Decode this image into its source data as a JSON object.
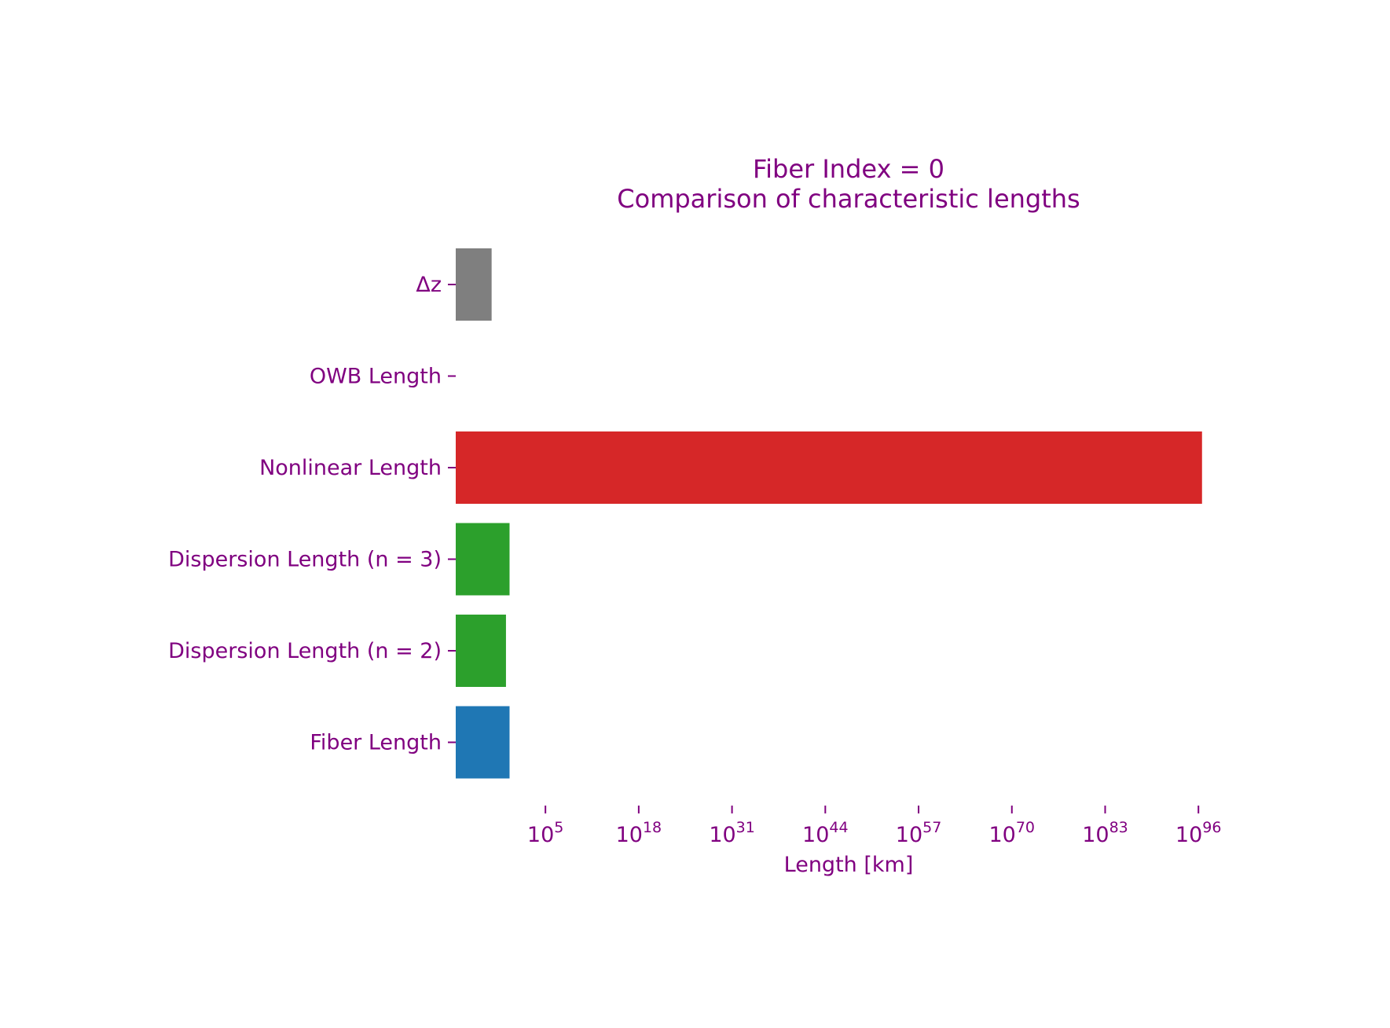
{
  "chart_data": {
    "type": "bar",
    "orientation": "horizontal",
    "title_line1": "Fiber Index = 0",
    "title_line2": "Comparison of characteristic lengths",
    "xlabel": "Length [km]",
    "ylabel": "",
    "x_scale": "log",
    "xlim_log10": [
      -7.5,
      102
    ],
    "text_color": "#800080",
    "categories": [
      "Δz",
      "OWB Length",
      "Nonlinear Length",
      "Dispersion Length (n = 3)",
      "Dispersion Length (n = 2)",
      "Fiber Length"
    ],
    "values_log10": [
      -2.5,
      null,
      96.5,
      0,
      -0.5,
      0
    ],
    "colors": [
      "#7f7f7f",
      "#ffffff",
      "#d62728",
      "#2ca02c",
      "#2ca02c",
      "#1f77b4"
    ],
    "x_ticks": [
      {
        "base": "10",
        "exp": "5",
        "log10": 5
      },
      {
        "base": "10",
        "exp": "18",
        "log10": 18
      },
      {
        "base": "10",
        "exp": "31",
        "log10": 31
      },
      {
        "base": "10",
        "exp": "44",
        "log10": 44
      },
      {
        "base": "10",
        "exp": "57",
        "log10": 57
      },
      {
        "base": "10",
        "exp": "70",
        "log10": 70
      },
      {
        "base": "10",
        "exp": "83",
        "log10": 83
      },
      {
        "base": "10",
        "exp": "96",
        "log10": 96
      }
    ],
    "grid": false,
    "legend": "none"
  }
}
